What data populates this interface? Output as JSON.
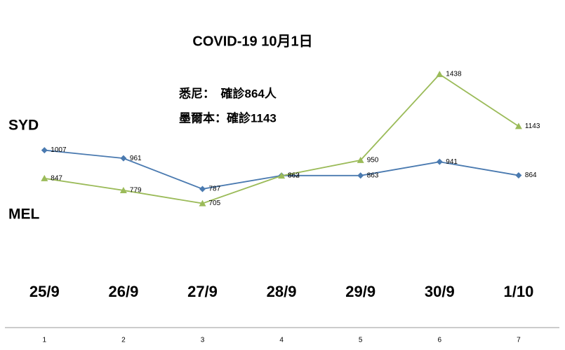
{
  "chart_data": {
    "type": "line",
    "title": "COVID-19 10月1日",
    "annotations": [
      "悉尼：　確診864人",
      "墨爾本：確診1143"
    ],
    "categories": [
      "1",
      "2",
      "3",
      "4",
      "5",
      "6",
      "7"
    ],
    "date_labels": [
      "25/9",
      "26/9",
      "27/9",
      "28/9",
      "29/9",
      "30/9",
      "1/10"
    ],
    "series": [
      {
        "name": "SYD",
        "color": "#4a7ab0",
        "marker": "diamond",
        "values": [
          1007,
          961,
          787,
          863,
          863,
          941,
          864
        ]
      },
      {
        "name": "MEL",
        "color": "#9bbb59",
        "marker": "triangle",
        "values": [
          847,
          779,
          705,
          862,
          950,
          1438,
          1143
        ]
      }
    ],
    "ylim": [
      0,
      1800
    ]
  }
}
